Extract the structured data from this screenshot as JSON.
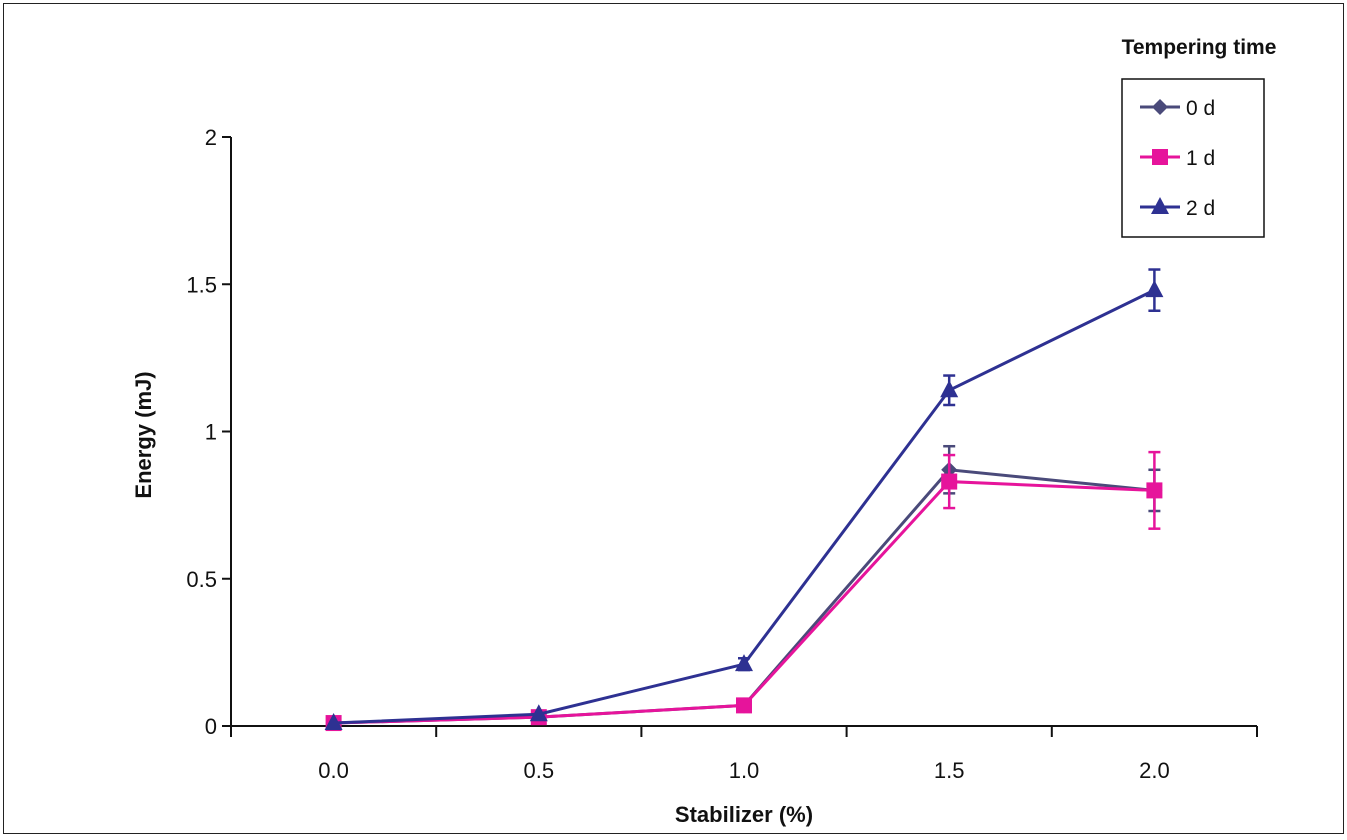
{
  "chart_data": {
    "type": "line",
    "xlabel": "Stabilizer (%)",
    "ylabel": "Energy (mJ)",
    "x": [
      0.0,
      0.5,
      1.0,
      1.5,
      2.0
    ],
    "x_tick_labels": [
      "0.0",
      "0.5",
      "1.0",
      "1.5",
      "2.0"
    ],
    "xlim": [
      -0.25,
      2.25
    ],
    "ylim": [
      0,
      2
    ],
    "y_ticks": [
      0,
      0.5,
      1,
      1.5,
      2
    ],
    "y_tick_labels": [
      "0",
      "0.5",
      "1",
      "1.5",
      "2"
    ],
    "grid": false,
    "legend": {
      "title": "Tempering time",
      "placement": "top-right"
    },
    "series": [
      {
        "name": "0 d",
        "color": "#4a4a7a",
        "marker": "diamond",
        "values": [
          0.01,
          0.03,
          0.07,
          0.87,
          0.8
        ],
        "errors": [
          0.0,
          0.0,
          0.0,
          0.08,
          0.07
        ]
      },
      {
        "name": "1 d",
        "color": "#e6149b",
        "marker": "square",
        "values": [
          0.01,
          0.03,
          0.07,
          0.83,
          0.8
        ],
        "errors": [
          0.0,
          0.0,
          0.0,
          0.09,
          0.13
        ]
      },
      {
        "name": "2 d",
        "color": "#2e3192",
        "marker": "triangle",
        "values": [
          0.01,
          0.04,
          0.21,
          1.14,
          1.48
        ],
        "errors": [
          0.0,
          0.0,
          0.02,
          0.05,
          0.07
        ]
      }
    ]
  }
}
